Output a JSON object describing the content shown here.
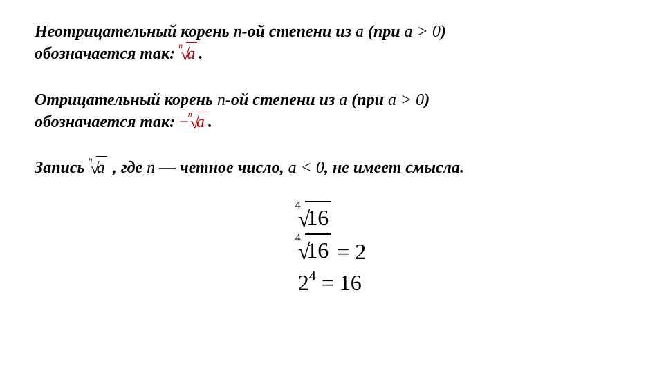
{
  "para1": {
    "pre": "Неотрицательный корень ",
    "var1": "n",
    "mid1": "-ой степени из ",
    "var2": "a",
    "mid2": " (при ",
    "cond_var": "a",
    "cond_op": " > 0",
    "mid3": ")",
    "line2_pre": "обозначается так: ",
    "root_index": "n",
    "root_radicand": "a",
    "period": "."
  },
  "para2": {
    "pre": "Отрицательный корень ",
    "var1": "n",
    "mid1": "-ой степени из ",
    "var2": "a",
    "mid2": " (при ",
    "cond_var": "a",
    "cond_op": " > 0",
    "mid3": ")",
    "line2_pre": "обозначается так: ",
    "neg": "−",
    "root_index": "n",
    "root_radicand": "a",
    "period": "."
  },
  "para3": {
    "pre": "Запись ",
    "root_index": "n",
    "root_radicand": "a",
    "mid1": " , где ",
    "var_n": "n",
    "mid2": " — четное число, ",
    "cond_var": "a",
    "cond_op": " < 0",
    "mid3": ", не имеет смысла."
  },
  "examples": {
    "line1": {
      "index": "4",
      "radicand": "16"
    },
    "line2": {
      "index": "4",
      "radicand": "16",
      "eq": " = ",
      "result": "2"
    },
    "line3": {
      "base": "2",
      "exp": "4",
      "eq": " = ",
      "result": "16"
    }
  },
  "colors": {
    "accent": "#c00000",
    "text": "#000000",
    "bg": "#ffffff"
  }
}
